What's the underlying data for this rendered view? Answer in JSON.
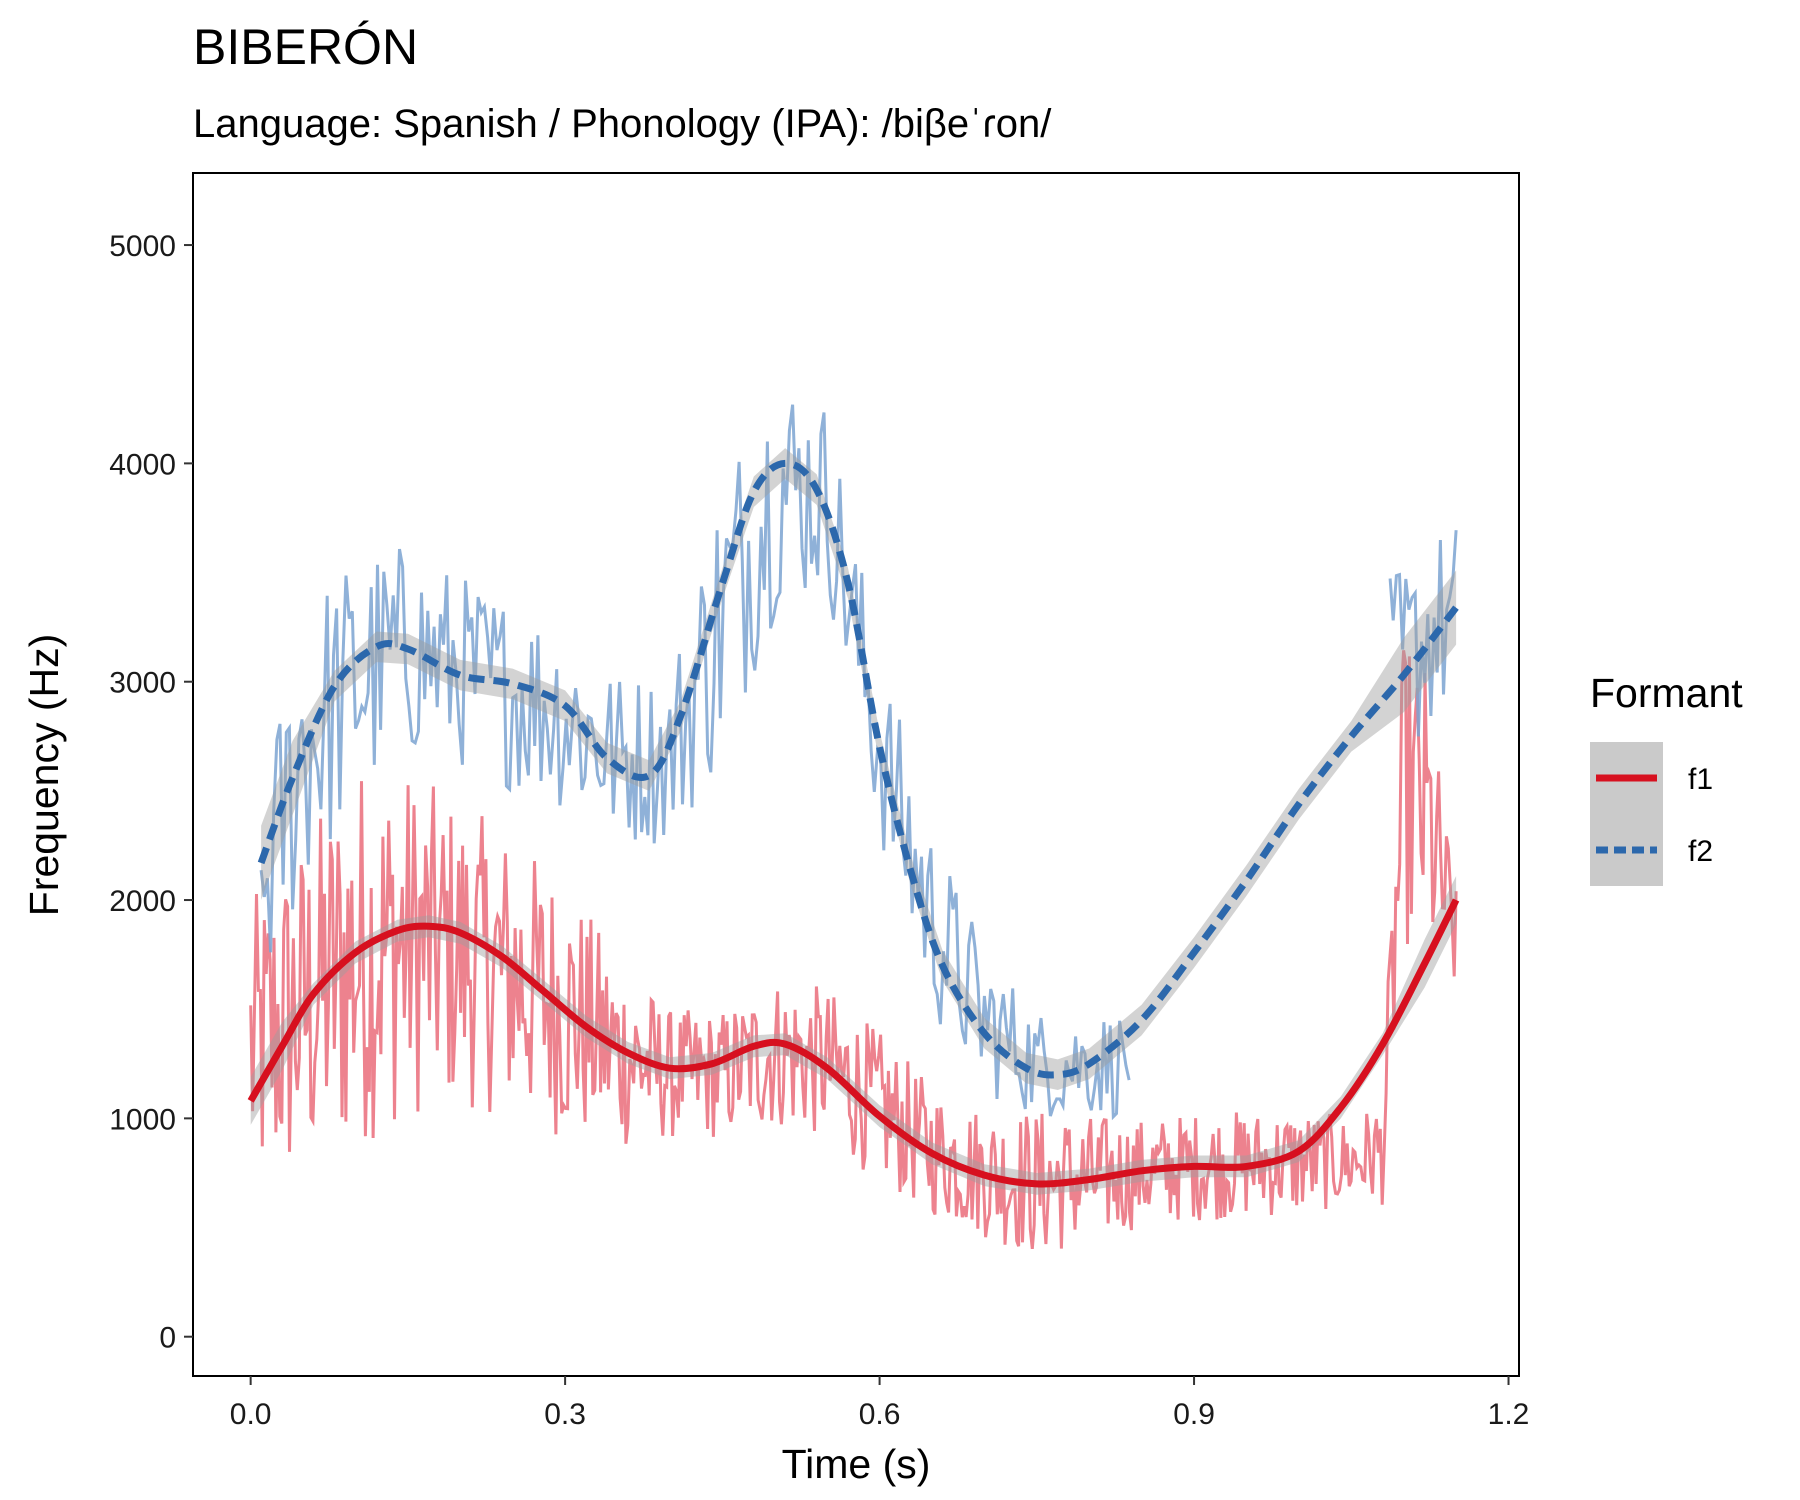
{
  "chart_data": {
    "type": "line",
    "title": "BIBERÓN",
    "subtitle": "Language: Spanish / Phonology (IPA): /biβeˈɾon/",
    "xlabel": "Time (s)",
    "ylabel": "Frequency (Hz)",
    "xlim": [
      -0.055,
      1.21
    ],
    "ylim": [
      -180,
      5330
    ],
    "xticks": [
      0.0,
      0.3,
      0.6,
      0.9,
      1.2
    ],
    "xtick_labels": [
      "0.0",
      "0.3",
      "0.6",
      "0.9",
      "1.2"
    ],
    "yticks": [
      0,
      1000,
      2000,
      3000,
      4000,
      5000
    ],
    "ytick_labels": [
      "0",
      "1000",
      "2000",
      "3000",
      "4000",
      "5000"
    ],
    "grid": false,
    "legend": {
      "title": "Formant",
      "position": "right",
      "entries": [
        "f1",
        "f2"
      ]
    },
    "colors": {
      "f1_line": "#d7101f",
      "f1_raw": "#ea6c7a",
      "f2_line": "#2c68ac",
      "f2_raw": "#7ba3d1",
      "ribbon": "#9e9e9e"
    },
    "series": [
      {
        "name": "f1",
        "style": "solid",
        "smooth": {
          "x": [
            0.0,
            0.03,
            0.06,
            0.1,
            0.14,
            0.17,
            0.2,
            0.24,
            0.28,
            0.32,
            0.36,
            0.4,
            0.44,
            0.48,
            0.51,
            0.55,
            0.6,
            0.65,
            0.7,
            0.75,
            0.8,
            0.85,
            0.9,
            0.95,
            1.0,
            1.04,
            1.08,
            1.12,
            1.15
          ],
          "y": [
            1080,
            1330,
            1570,
            1760,
            1860,
            1880,
            1850,
            1740,
            1580,
            1420,
            1300,
            1230,
            1250,
            1330,
            1340,
            1230,
            1010,
            840,
            740,
            700,
            720,
            760,
            780,
            780,
            850,
            1050,
            1340,
            1710,
            2000
          ]
        },
        "raw_envelope": {
          "x": [
            0.0,
            0.05,
            0.1,
            0.15,
            0.2,
            0.25,
            0.3,
            0.35,
            0.4,
            0.45,
            0.5,
            0.55,
            0.6,
            0.65,
            0.7,
            0.75,
            0.8,
            0.85,
            0.9,
            0.95,
            1.0,
            1.05,
            1.08,
            1.1,
            1.12,
            1.15
          ],
          "center": [
            1300,
            1500,
            1750,
            1800,
            1750,
            1650,
            1500,
            1300,
            1200,
            1200,
            1300,
            1250,
            1050,
            850,
            750,
            700,
            720,
            750,
            780,
            790,
            800,
            800,
            850,
            2500,
            2400,
            1800
          ],
          "spread": [
            700,
            800,
            900,
            800,
            700,
            650,
            600,
            450,
            300,
            300,
            350,
            350,
            350,
            300,
            300,
            350,
            300,
            250,
            250,
            250,
            250,
            200,
            250,
            700,
            700,
            250
          ]
        }
      },
      {
        "name": "f2",
        "style": "dashed",
        "smooth": {
          "x": [
            0.01,
            0.04,
            0.08,
            0.12,
            0.15,
            0.2,
            0.25,
            0.3,
            0.34,
            0.38,
            0.41,
            0.45,
            0.48,
            0.51,
            0.54,
            0.57,
            0.6,
            0.63,
            0.66,
            0.7,
            0.74,
            0.77,
            0.8,
            0.85,
            0.9,
            0.95,
            1.0,
            1.05,
            1.1,
            1.15
          ],
          "y": [
            2170,
            2560,
            2980,
            3160,
            3150,
            3030,
            2990,
            2890,
            2650,
            2570,
            2840,
            3450,
            3870,
            4000,
            3880,
            3450,
            2700,
            2130,
            1700,
            1390,
            1230,
            1200,
            1250,
            1450,
            1760,
            2090,
            2440,
            2750,
            3030,
            3340
          ]
        },
        "raw_envelope": {
          "x": [
            0.01,
            0.05,
            0.1,
            0.15,
            0.2,
            0.25,
            0.3,
            0.35,
            0.4,
            0.45,
            0.5,
            0.55,
            0.6,
            0.65,
            0.7,
            0.75,
            0.8,
            0.83,
            1.09,
            1.12,
            1.15
          ],
          "center": [
            2000,
            2700,
            3000,
            3150,
            3050,
            2950,
            2850,
            2650,
            2650,
            3300,
            3900,
            3850,
            2700,
            1900,
            1450,
            1250,
            1250,
            1250,
            3000,
            3200,
            3300
          ],
          "spread": [
            500,
            700,
            600,
            500,
            450,
            450,
            450,
            400,
            400,
            700,
            600,
            450,
            450,
            450,
            350,
            250,
            250,
            250,
            500,
            450,
            450
          ]
        }
      }
    ]
  }
}
